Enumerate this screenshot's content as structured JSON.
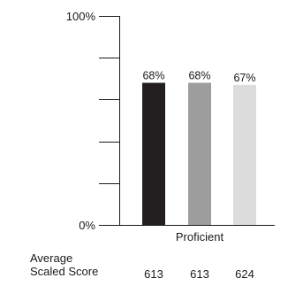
{
  "chart_data": {
    "type": "bar",
    "categories": [
      "Proficient"
    ],
    "series": [
      {
        "values": [
          68
        ],
        "color": "#231f20"
      },
      {
        "values": [
          68
        ],
        "color": "#9d9d9d"
      },
      {
        "values": [
          67
        ],
        "color": "#dcdcdc"
      }
    ],
    "data_labels": [
      "68%",
      "68%",
      "67%"
    ],
    "ylim": [
      0,
      100
    ],
    "y_tick_values": [
      0,
      20,
      40,
      60,
      80,
      100
    ],
    "y_tick_labels": [
      "0%",
      "",
      "",
      "",
      "",
      "100%"
    ],
    "grid": false,
    "legend": "none"
  },
  "footer": {
    "label_line1": "Average",
    "label_line2": "Scaled Score",
    "scores": [
      "613",
      "613",
      "624"
    ]
  }
}
